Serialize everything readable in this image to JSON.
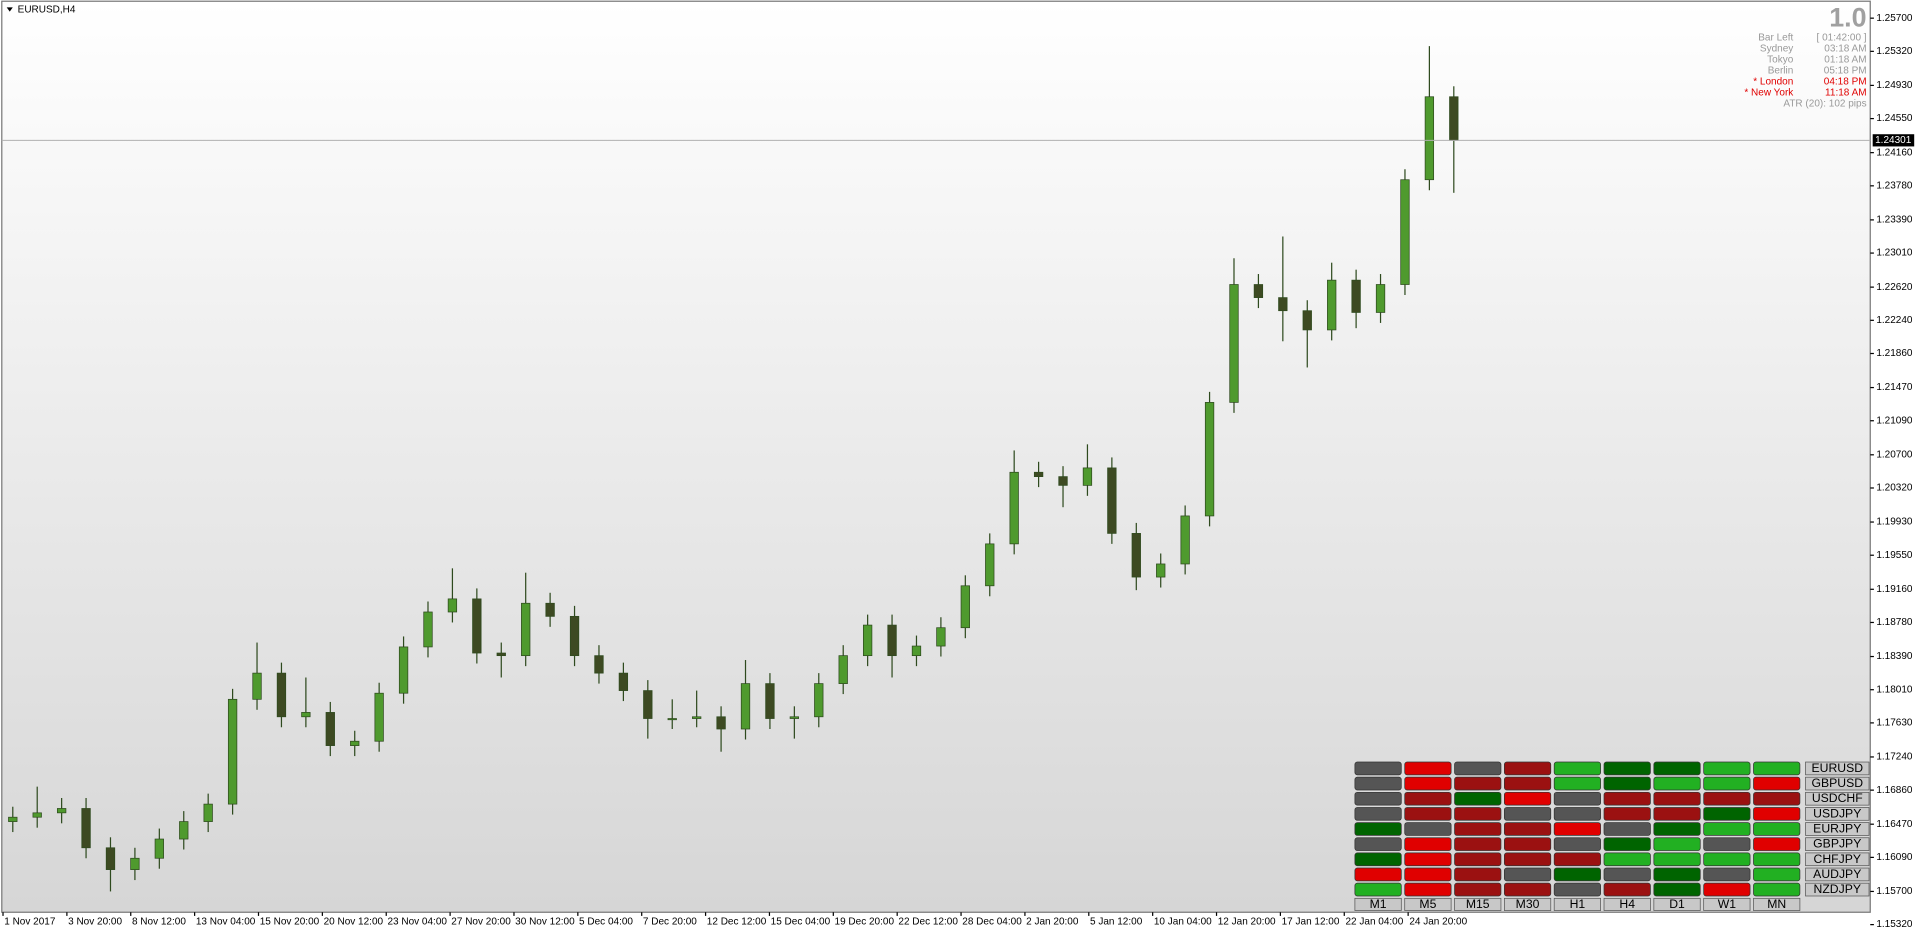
{
  "chart_data": {
    "type": "candlestick",
    "title": "EURUSD,H4",
    "open": [
      1.165,
      1.1655,
      1.166,
      1.1665,
      1.162,
      1.1595,
      1.1608,
      1.163,
      1.165,
      1.167,
      1.179,
      1.182,
      1.177,
      1.1775,
      1.1737,
      1.1742,
      1.1797,
      1.185,
      1.189,
      1.1905,
      1.1843,
      1.184,
      1.19,
      1.1885,
      1.184,
      1.182,
      1.18,
      1.1768,
      1.1768,
      1.177,
      1.1756,
      1.1808,
      1.1768,
      1.177,
      1.1808,
      1.184,
      1.1875,
      1.184,
      1.1851,
      1.1872,
      1.192,
      1.1968,
      1.205,
      1.2045,
      1.2035,
      1.2055,
      1.198,
      1.193,
      1.1945,
      1.2,
      1.213,
      1.2265,
      1.225,
      1.2235,
      1.2213,
      1.227,
      1.2233,
      1.2265,
      1.2385,
      1.248
    ],
    "high": [
      1.1667,
      1.169,
      1.1677,
      1.1677,
      1.1632,
      1.162,
      1.1642,
      1.1662,
      1.1682,
      1.1802,
      1.1855,
      1.1832,
      1.1815,
      1.1787,
      1.1754,
      1.1809,
      1.1862,
      1.1902,
      1.194,
      1.1917,
      1.1855,
      1.1935,
      1.1912,
      1.1897,
      1.1852,
      1.1832,
      1.1812,
      1.179,
      1.18,
      1.1782,
      1.1835,
      1.182,
      1.1782,
      1.182,
      1.1852,
      1.1887,
      1.1887,
      1.1863,
      1.1884,
      1.1932,
      1.198,
      1.2075,
      1.2062,
      1.2057,
      1.2082,
      1.2067,
      1.1992,
      1.1957,
      1.2012,
      1.2142,
      1.2295,
      1.2277,
      1.232,
      1.2247,
      1.229,
      1.2282,
      1.2277,
      1.2397,
      1.2538,
      1.2492
    ],
    "low": [
      1.1638,
      1.1643,
      1.1648,
      1.1608,
      1.157,
      1.1583,
      1.1596,
      1.1618,
      1.1638,
      1.1658,
      1.1778,
      1.1758,
      1.1758,
      1.1725,
      1.1725,
      1.173,
      1.1785,
      1.1838,
      1.1878,
      1.1831,
      1.1815,
      1.1828,
      1.1873,
      1.1828,
      1.1808,
      1.1788,
      1.1745,
      1.1756,
      1.1758,
      1.173,
      1.1744,
      1.1756,
      1.1745,
      1.1758,
      1.1796,
      1.1828,
      1.1815,
      1.1828,
      1.1839,
      1.186,
      1.1908,
      1.1956,
      1.2033,
      1.201,
      1.2023,
      1.1968,
      1.1915,
      1.1918,
      1.1933,
      1.1988,
      1.2118,
      1.2238,
      1.22,
      1.217,
      1.2201,
      1.2215,
      1.2221,
      1.2253,
      1.2373,
      1.237
    ],
    "close": [
      1.1655,
      1.166,
      1.1665,
      1.162,
      1.1595,
      1.1608,
      1.163,
      1.165,
      1.167,
      1.179,
      1.182,
      1.177,
      1.1775,
      1.1737,
      1.1742,
      1.1797,
      1.185,
      1.189,
      1.1905,
      1.1843,
      1.184,
      1.19,
      1.1885,
      1.184,
      1.182,
      1.18,
      1.1768,
      1.1768,
      1.177,
      1.1756,
      1.1808,
      1.1768,
      1.177,
      1.1808,
      1.184,
      1.1875,
      1.184,
      1.1851,
      1.1872,
      1.192,
      1.1968,
      1.205,
      1.2045,
      1.2035,
      1.2055,
      1.198,
      1.193,
      1.1945,
      1.2,
      1.213,
      1.2265,
      1.225,
      1.2235,
      1.2213,
      1.227,
      1.2233,
      1.2265,
      1.2385,
      1.248,
      1.243
    ],
    "up_color": "#4f9a2e",
    "down_color": "#3d4a22",
    "wick_color": "#2e4a1e",
    "current_price": 1.24301,
    "x_labels": [
      "1 Nov 2017",
      "3 Nov 20:00",
      "8 Nov 12:00",
      "13 Nov 04:00",
      "15 Nov 20:00",
      "20 Nov 12:00",
      "23 Nov 04:00",
      "27 Nov 20:00",
      "30 Nov 12:00",
      "5 Dec 04:00",
      "7 Dec 20:00",
      "12 Dec 12:00",
      "15 Dec 04:00",
      "19 Dec 20:00",
      "22 Dec 12:00",
      "28 Dec 04:00",
      "2 Jan 20:00",
      "5 Jan 12:00",
      "10 Jan 04:00",
      "12 Jan 20:00",
      "17 Jan 12:00",
      "22 Jan 04:00",
      "24 Jan 20:00"
    ],
    "ylim": [
      1.1528,
      1.2588
    ],
    "yticks": [
      {
        "value": 1.257,
        "label": "1.25700"
      },
      {
        "value": 1.2532,
        "label": "1.25320"
      },
      {
        "value": 1.2493,
        "label": "1.24930"
      },
      {
        "value": 1.2455,
        "label": "1.24550"
      },
      {
        "value": 1.2416,
        "label": "1.24160"
      },
      {
        "value": 1.2378,
        "label": "1.23780"
      },
      {
        "value": 1.2339,
        "label": "1.23390"
      },
      {
        "value": 1.2301,
        "label": "1.23010"
      },
      {
        "value": 1.2262,
        "label": "1.22620"
      },
      {
        "value": 1.2224,
        "label": "1.22240"
      },
      {
        "value": 1.2186,
        "label": "1.21860"
      },
      {
        "value": 1.2147,
        "label": "1.21470"
      },
      {
        "value": 1.2109,
        "label": "1.21090"
      },
      {
        "value": 1.207,
        "label": "1.20700"
      },
      {
        "value": 1.2032,
        "label": "1.20320"
      },
      {
        "value": 1.1993,
        "label": "1.19930"
      },
      {
        "value": 1.1955,
        "label": "1.19550"
      },
      {
        "value": 1.1916,
        "label": "1.19160"
      },
      {
        "value": 1.1878,
        "label": "1.18780"
      },
      {
        "value": 1.1839,
        "label": "1.18390"
      },
      {
        "value": 1.1801,
        "label": "1.18010"
      },
      {
        "value": 1.1763,
        "label": "1.17630"
      },
      {
        "value": 1.1724,
        "label": "1.17240"
      },
      {
        "value": 1.1686,
        "label": "1.16860"
      },
      {
        "value": 1.1647,
        "label": "1.16470"
      },
      {
        "value": 1.1609,
        "label": "1.16090"
      },
      {
        "value": 1.157,
        "label": "1.15700"
      },
      {
        "value": 1.1532,
        "label": "1.15320"
      }
    ]
  },
  "info_panel": {
    "version": "1.0",
    "rows": [
      {
        "label": "Bar Left",
        "value": "[ 01:42:00 ]",
        "color": "#999999"
      },
      {
        "label": "Sydney",
        "value": "03:18 AM",
        "color": "#999999"
      },
      {
        "label": "Tokyo",
        "value": "01:18 AM",
        "color": "#999999"
      },
      {
        "label": "Berlin",
        "value": "05:18 PM",
        "color": "#999999"
      },
      {
        "label": "* London",
        "value": "04:18 PM",
        "color": "#e00000"
      },
      {
        "label": "* New York",
        "value": "11:18 AM",
        "color": "#e00000"
      }
    ],
    "atr": "ATR (20): 102 pips"
  },
  "strength": {
    "palette": {
      "g": "#22b022",
      "G": "#006400",
      "r": "#e00000",
      "R": "#9b1111",
      "n": "#555555"
    },
    "columns": [
      "M1",
      "M5",
      "M15",
      "M30",
      "H1",
      "H4",
      "D1",
      "W1",
      "MN"
    ],
    "rows": [
      {
        "symbol": "EURUSD",
        "cells": [
          "n",
          "r",
          "n",
          "R",
          "g",
          "G",
          "G",
          "g",
          "g"
        ]
      },
      {
        "symbol": "GBPUSD",
        "cells": [
          "n",
          "r",
          "R",
          "R",
          "g",
          "G",
          "g",
          "g",
          "r"
        ]
      },
      {
        "symbol": "USDCHF",
        "cells": [
          "n",
          "R",
          "G",
          "r",
          "n",
          "R",
          "R",
          "R",
          "R"
        ]
      },
      {
        "symbol": "USDJPY",
        "cells": [
          "n",
          "R",
          "R",
          "n",
          "n",
          "R",
          "R",
          "G",
          "r"
        ]
      },
      {
        "symbol": "EURJPY",
        "cells": [
          "G",
          "n",
          "R",
          "R",
          "r",
          "n",
          "G",
          "g",
          "g"
        ]
      },
      {
        "symbol": "GBPJPY",
        "cells": [
          "n",
          "r",
          "R",
          "R",
          "n",
          "G",
          "g",
          "n",
          "r"
        ]
      },
      {
        "symbol": "CHFJPY",
        "cells": [
          "G",
          "r",
          "R",
          "R",
          "R",
          "g",
          "g",
          "g",
          "g"
        ]
      },
      {
        "symbol": "AUDJPY",
        "cells": [
          "r",
          "r",
          "R",
          "n",
          "G",
          "n",
          "G",
          "n",
          "g"
        ]
      },
      {
        "symbol": "NZDJPY",
        "cells": [
          "g",
          "r",
          "R",
          "R",
          "n",
          "R",
          "G",
          "r",
          "g"
        ]
      }
    ]
  }
}
